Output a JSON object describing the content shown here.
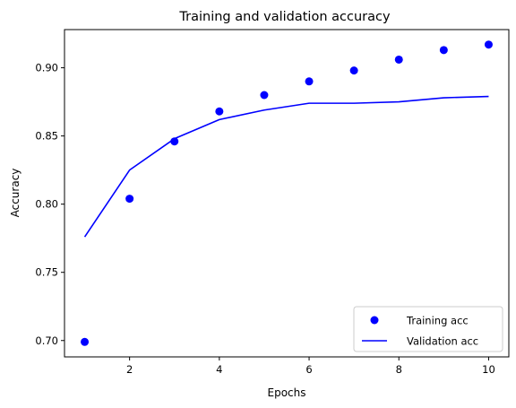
{
  "chart_data": {
    "type": "scatter",
    "title": "Training and validation accuracy",
    "xlabel": "Epochs",
    "ylabel": "Accuracy",
    "xlim": [
      0.55,
      10.45
    ],
    "ylim": [
      0.688,
      0.928
    ],
    "xticks": [
      2,
      4,
      6,
      8,
      10
    ],
    "xtick_labels": [
      "2",
      "4",
      "6",
      "8",
      "10"
    ],
    "yticks": [
      0.7,
      0.75,
      0.8,
      0.85,
      0.9
    ],
    "ytick_labels": [
      "0.70",
      "0.75",
      "0.80",
      "0.85",
      "0.90"
    ],
    "grid": false,
    "legend_position": "lower-right",
    "series": [
      {
        "name": "Training acc",
        "style": "markers",
        "color": "#0000ff",
        "x": [
          1,
          2,
          3,
          4,
          5,
          6,
          7,
          8,
          9,
          10
        ],
        "y": [
          0.699,
          0.804,
          0.846,
          0.868,
          0.88,
          0.89,
          0.898,
          0.906,
          0.913,
          0.917
        ]
      },
      {
        "name": "Validation acc",
        "style": "line",
        "color": "#0000ff",
        "x": [
          1,
          2,
          3,
          4,
          5,
          6,
          7,
          8,
          9,
          10
        ],
        "y": [
          0.776,
          0.825,
          0.848,
          0.862,
          0.869,
          0.874,
          0.874,
          0.875,
          0.878,
          0.879
        ]
      }
    ]
  }
}
